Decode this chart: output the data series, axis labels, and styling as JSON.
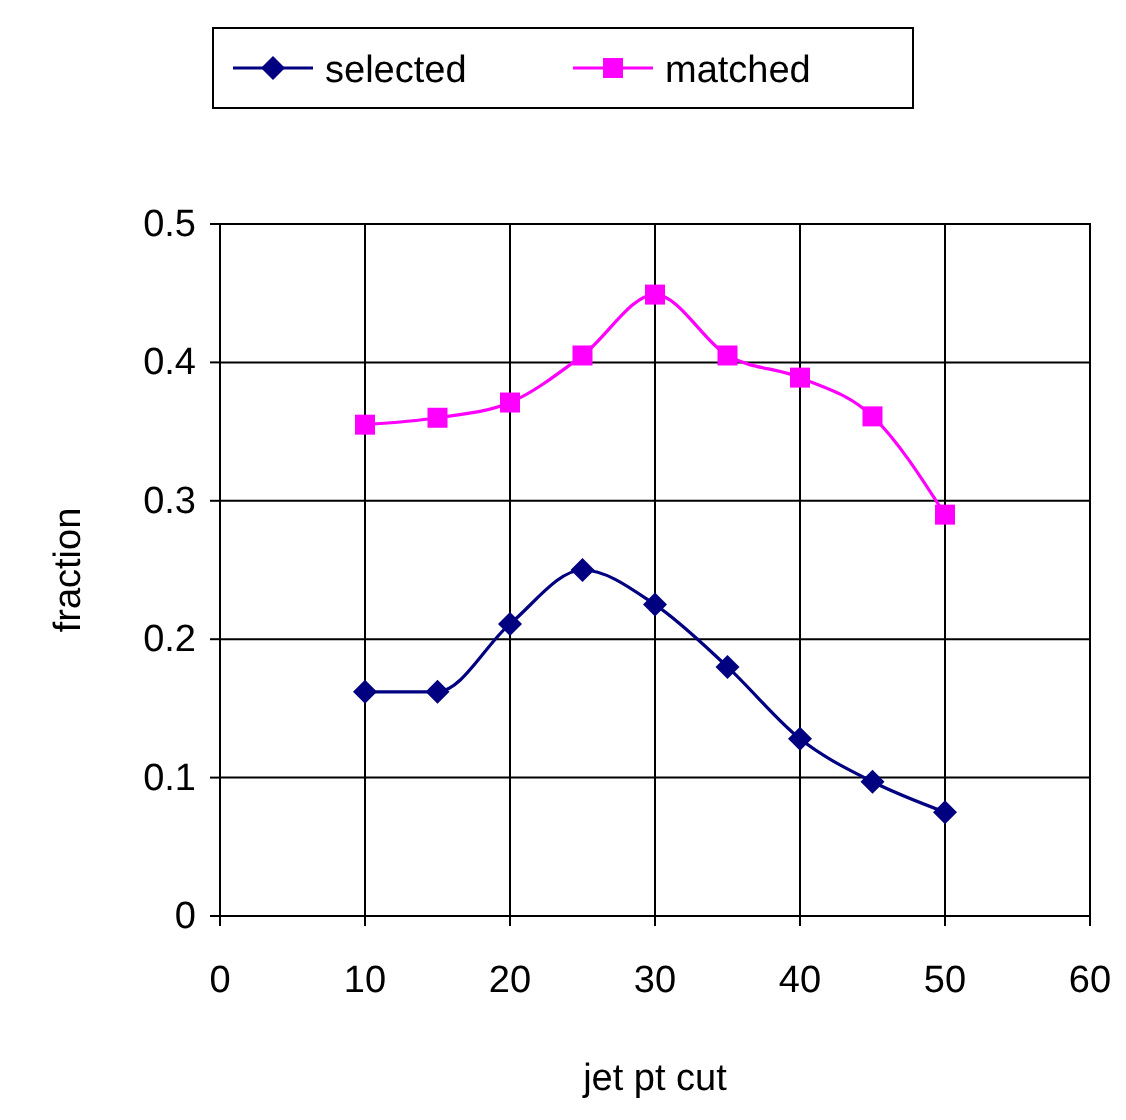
{
  "chart_data": {
    "type": "line",
    "xlabel": "jet pt cut",
    "ylabel": "fraction",
    "x": [
      10,
      15,
      20,
      25,
      30,
      35,
      40,
      45,
      50
    ],
    "series": [
      {
        "name": "selected",
        "color": "#000080",
        "marker": "diamond",
        "values": [
          0.162,
          0.162,
          0.211,
          0.25,
          0.225,
          0.18,
          0.128,
          0.097,
          0.075
        ]
      },
      {
        "name": "matched",
        "color": "#ff00ff",
        "marker": "square",
        "values": [
          0.355,
          0.36,
          0.371,
          0.405,
          0.449,
          0.405,
          0.389,
          0.361,
          0.29
        ]
      }
    ],
    "xlim": [
      0,
      60
    ],
    "xticks": [
      0,
      10,
      20,
      30,
      40,
      50,
      60
    ],
    "ylim": [
      0,
      0.5
    ],
    "yticks": [
      0,
      0.1,
      0.2,
      0.3,
      0.4,
      0.5
    ],
    "grid": true,
    "legend": "top"
  }
}
